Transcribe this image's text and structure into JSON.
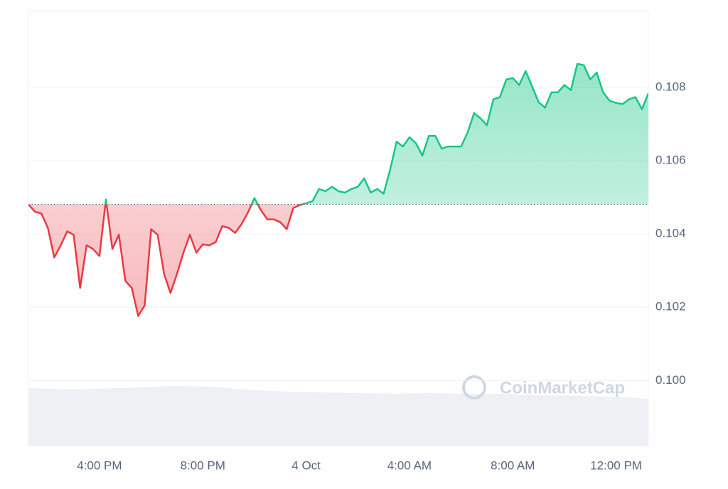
{
  "chart_data": {
    "type": "line",
    "watermark": "CoinMarketCap",
    "baseline": 0.10481,
    "up_color": "#16c784",
    "down_color": "#ea3943",
    "grid": true,
    "xlim": [
      0,
      96
    ],
    "xticks": [
      {
        "value": 11,
        "label": "4:00 PM"
      },
      {
        "value": 27,
        "label": "8:00 PM"
      },
      {
        "value": 43,
        "label": "4 Oct"
      },
      {
        "value": 59,
        "label": "4:00 AM"
      },
      {
        "value": 75,
        "label": "8:00 AM"
      },
      {
        "value": 91,
        "label": "12:00 PM"
      }
    ],
    "ylim": [
      0.0982,
      0.1101
    ],
    "yticks": [
      {
        "value": 0.1,
        "label": "0.100"
      },
      0.102,
      0.104,
      0.106,
      0.108
    ],
    "values": [
      0.10481,
      0.10461,
      0.10456,
      0.10417,
      0.10336,
      0.10369,
      0.10407,
      0.10398,
      0.10253,
      0.10369,
      0.10359,
      0.1034,
      0.10494,
      0.10359,
      0.10398,
      0.10272,
      0.10253,
      0.10176,
      0.10205,
      0.10413,
      0.10398,
      0.10291,
      0.10239,
      0.10291,
      0.10349,
      0.10398,
      0.10349,
      0.10372,
      0.10369,
      0.10378,
      0.10421,
      0.10417,
      0.10403,
      0.10427,
      0.10459,
      0.10498,
      0.10465,
      0.1044,
      0.1044,
      0.10432,
      0.10413,
      0.10471,
      0.10479,
      0.10484,
      0.1049,
      0.10523,
      0.10517,
      0.10529,
      0.10517,
      0.10513,
      0.10523,
      0.10529,
      0.10552,
      0.10513,
      0.10523,
      0.1051,
      0.10575,
      0.10652,
      0.10639,
      0.10664,
      0.10648,
      0.10614,
      0.10668,
      0.10668,
      0.10633,
      0.10639,
      0.10639,
      0.10639,
      0.10677,
      0.1073,
      0.10716,
      0.10697,
      0.10768,
      0.10774,
      0.10822,
      0.10826,
      0.10807,
      0.10845,
      0.10803,
      0.1076,
      0.10745,
      0.10787,
      0.10787,
      0.10807,
      0.10793,
      0.10865,
      0.10861,
      0.10822,
      0.10841,
      0.10787,
      0.10764,
      0.10758,
      0.10755,
      0.10768,
      0.10774,
      0.10741,
      0.10784
    ]
  }
}
